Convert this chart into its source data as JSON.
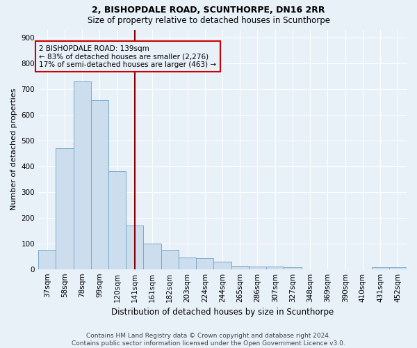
{
  "title": "2, BISHOPDALE ROAD, SCUNTHORPE, DN16 2RR",
  "subtitle": "Size of property relative to detached houses in Scunthorpe",
  "xlabel": "Distribution of detached houses by size in Scunthorpe",
  "ylabel": "Number of detached properties",
  "footnote1": "Contains HM Land Registry data © Crown copyright and database right 2024.",
  "footnote2": "Contains public sector information licensed under the Open Government Licence v3.0.",
  "annotation_line1": "2 BISHOPDALE ROAD: 139sqm",
  "annotation_line2": "← 83% of detached houses are smaller (2,276)",
  "annotation_line3": "17% of semi-detached houses are larger (463) →",
  "bar_labels": [
    "37sqm",
    "58sqm",
    "78sqm",
    "99sqm",
    "120sqm",
    "141sqm",
    "161sqm",
    "182sqm",
    "203sqm",
    "224sqm",
    "244sqm",
    "265sqm",
    "286sqm",
    "307sqm",
    "327sqm",
    "348sqm",
    "369sqm",
    "390sqm",
    "410sqm",
    "431sqm",
    "452sqm"
  ],
  "bar_values": [
    75,
    470,
    730,
    655,
    380,
    170,
    98,
    75,
    45,
    42,
    30,
    13,
    11,
    10,
    6,
    0,
    0,
    0,
    0,
    8,
    6
  ],
  "bar_color": "#ccdded",
  "bar_edgecolor": "#7aaac8",
  "vline_color": "#880000",
  "ylim": [
    0,
    930
  ],
  "yticks": [
    0,
    100,
    200,
    300,
    400,
    500,
    600,
    700,
    800,
    900
  ],
  "annotation_box_edgecolor": "#cc0000",
  "background_color": "#e8f0f8",
  "grid_color": "#ffffff",
  "title_fontsize": 9,
  "subtitle_fontsize": 8.5,
  "xlabel_fontsize": 8.5,
  "ylabel_fontsize": 8,
  "tick_fontsize": 7.5,
  "annotation_fontsize": 7.5,
  "footnote_fontsize": 6.5
}
